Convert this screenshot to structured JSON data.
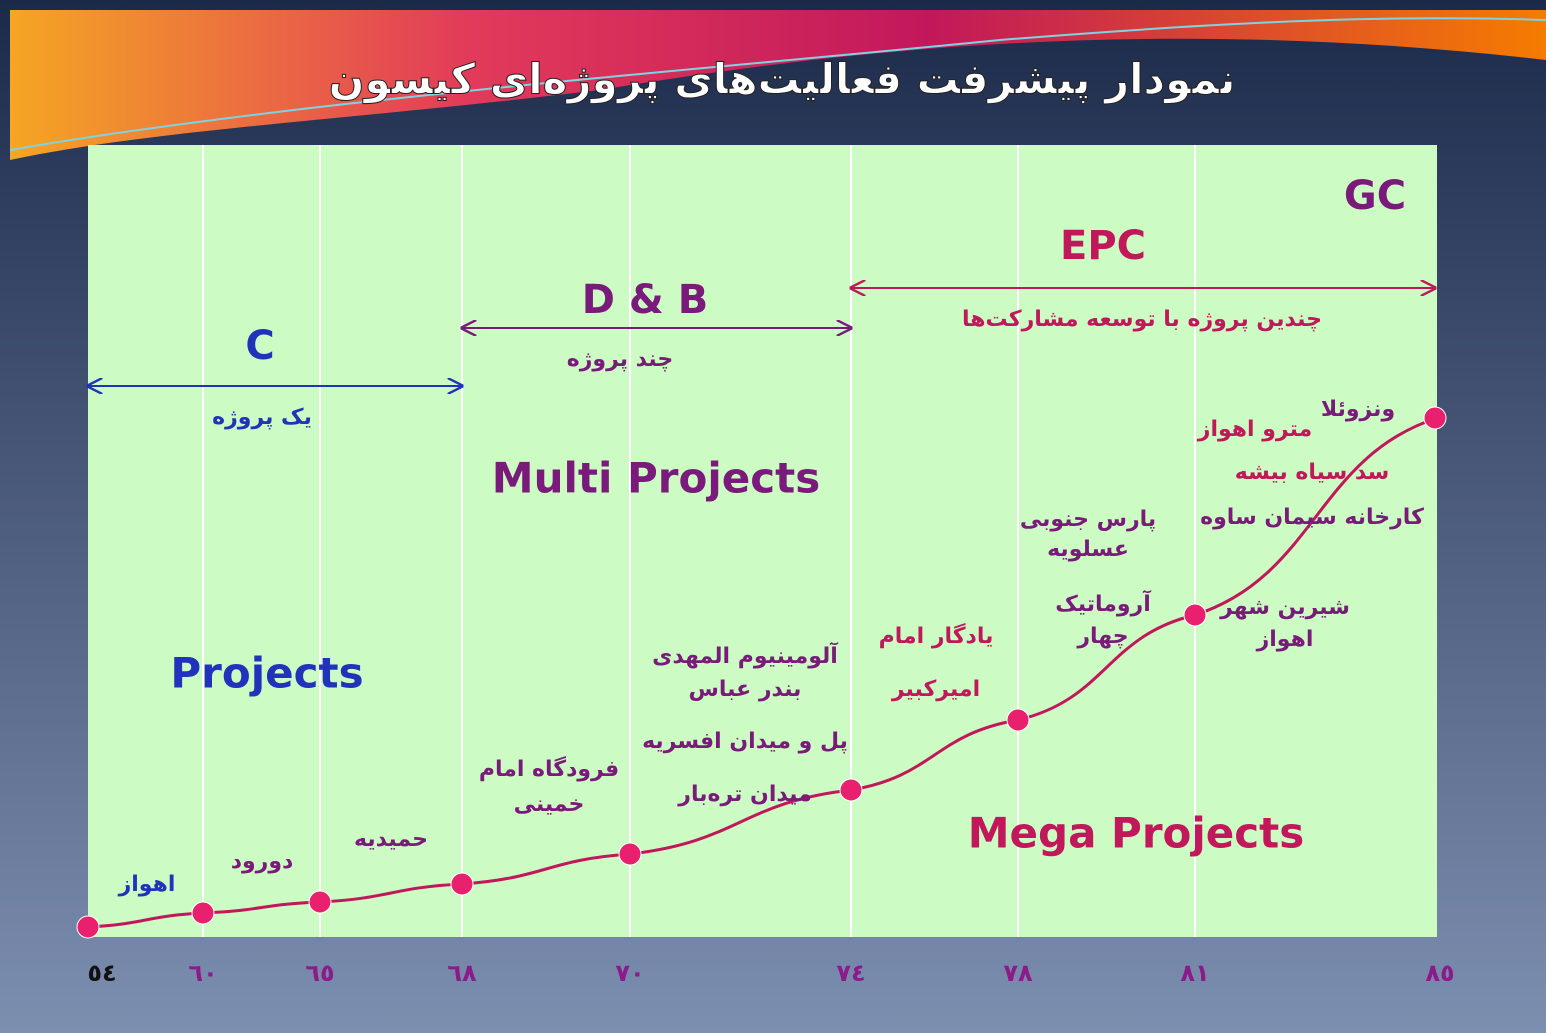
{
  "title": "نمودار پیشرفت فعالیت‌های پروژه‌ای کیسون",
  "axis_labels": [
    "٥٤",
    "٦٠",
    "٦٥",
    "٦٨",
    "٧٠",
    "٧٤",
    "٧٨",
    "٨١",
    "٨٥"
  ],
  "phases": [
    {
      "name": "C",
      "subtitle": "یک پروژه"
    },
    {
      "name": "D & B",
      "subtitle": "چند پروژه"
    },
    {
      "name": "EPC",
      "subtitle": "چندین پروژه با توسعه مشارکت‌ها"
    },
    {
      "name": "GC"
    }
  ],
  "sections": [
    "Projects",
    "Multi Projects",
    "Mega Projects"
  ],
  "projects": [
    {
      "lines": [
        "اهواز"
      ]
    },
    {
      "lines": [
        "دورود"
      ]
    },
    {
      "lines": [
        "حمیدیه"
      ]
    },
    {
      "lines": [
        "فرودگاه امام",
        "خمینی"
      ]
    },
    {
      "lines": [
        "آلومینیوم المهدی",
        "بندر عباس",
        "پل و میدان افسریه",
        "میدان تره‌بار"
      ]
    },
    {
      "lines": [
        "یادگار امام",
        "امیرکبیر"
      ]
    },
    {
      "lines": [
        "پارس جنوبی",
        "عسلویه"
      ]
    },
    {
      "lines": [
        "آروماتیک",
        "چهار"
      ]
    },
    {
      "lines": [
        "شیرین شهر",
        "اهواز"
      ]
    },
    {
      "lines": [
        "ونزوئلا"
      ]
    },
    {
      "lines": [
        "مترو اهواز"
      ]
    },
    {
      "lines": [
        "سد سیاه بیشه"
      ]
    },
    {
      "lines": [
        "کارخانه سیمان ساوه"
      ]
    }
  ]
}
